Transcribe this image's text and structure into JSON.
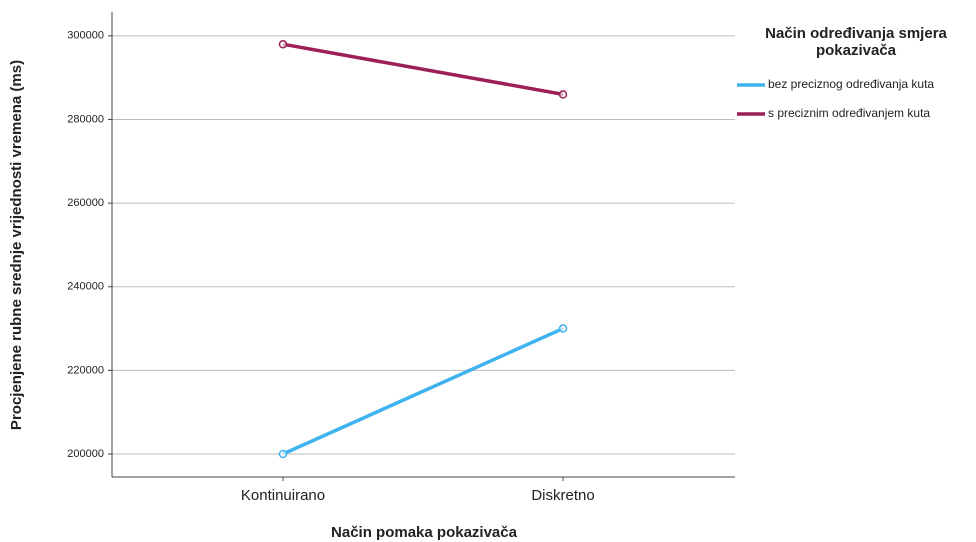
{
  "chart_data": {
    "type": "line",
    "x_label": "Način pomaka pokazivača",
    "y_label": "Procjenjene rubne srednje vrijednosti vremena (ms)",
    "legend_title": "Način određivanja smjera pokazivača",
    "categories": [
      "Kontinuirano",
      "Diskretno"
    ],
    "series": [
      {
        "name": "bez preciznog određivanja kuta",
        "color": "#3eb3f0",
        "values": [
          200000,
          230000
        ]
      },
      {
        "name": "s preciznim određivanjem kuta",
        "color": "#9c1f57",
        "values": [
          298000,
          286000
        ]
      }
    ],
    "ylim": [
      194500,
      305700
    ],
    "yticks": [
      200000,
      220000,
      240000,
      260000,
      280000,
      300000
    ],
    "grid": true,
    "legend_position": "right"
  }
}
